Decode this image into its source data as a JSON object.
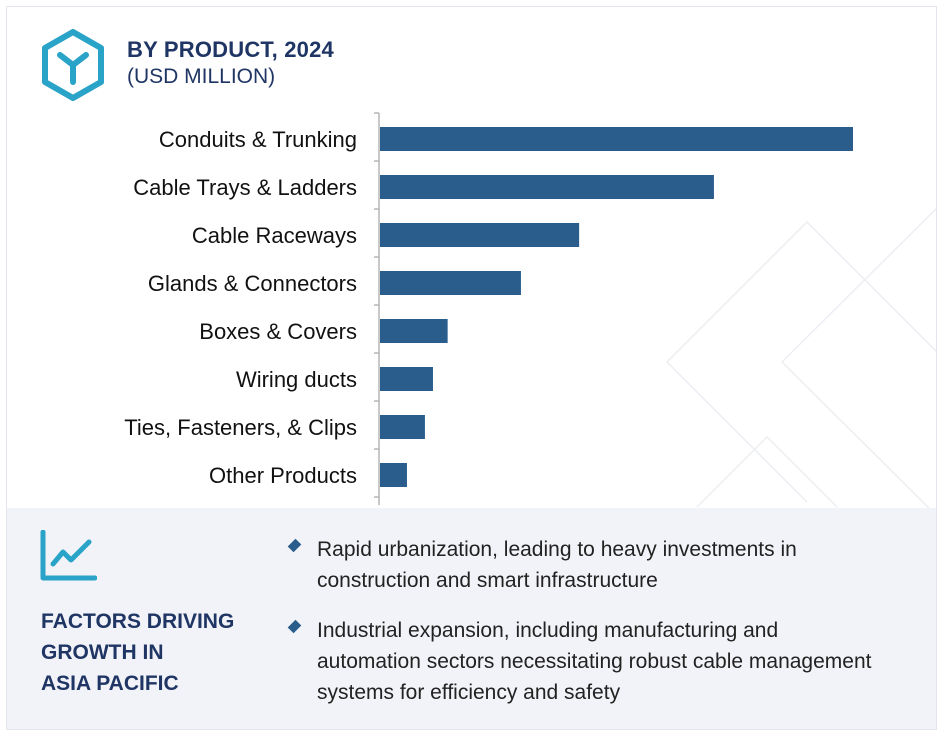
{
  "header": {
    "title": "BY PRODUCT, 2024",
    "subtitle": "(USD MILLION)",
    "icon": "cube-y-icon"
  },
  "colors": {
    "bar": "#2a5d8c",
    "accent_teal": "#29a3c7",
    "heading_navy": "#1f3564",
    "panel_bg": "#f2f3f8"
  },
  "chart_data": {
    "type": "bar",
    "orientation": "horizontal",
    "title": "BY PRODUCT, 2024",
    "subtitle": "(USD MILLION)",
    "categories": [
      "Conduits & Trunking",
      "Cable Trays & Ladders",
      "Cable Raceways",
      "Glands & Connectors",
      "Boxes & Covers",
      "Wiring ducts",
      "Ties, Fasteners, & Clips",
      "Other Products"
    ],
    "values": [
      100,
      70.6,
      42.1,
      29.8,
      14.3,
      11.2,
      9.5,
      5.7
    ],
    "value_axis_shown": false,
    "xlim": [
      0,
      100
    ],
    "grid": false,
    "legend": "none"
  },
  "factors": {
    "icon": "growth-chart-icon",
    "title": "FACTORS DRIVING\nGROWTH IN\nASIA PACIFIC",
    "items": [
      "Rapid urbanization, leading to heavy investments in construction and smart infrastructure",
      "Industrial expansion, including manufacturing and automation sectors necessitating robust cable management systems for efficiency and safety"
    ]
  }
}
